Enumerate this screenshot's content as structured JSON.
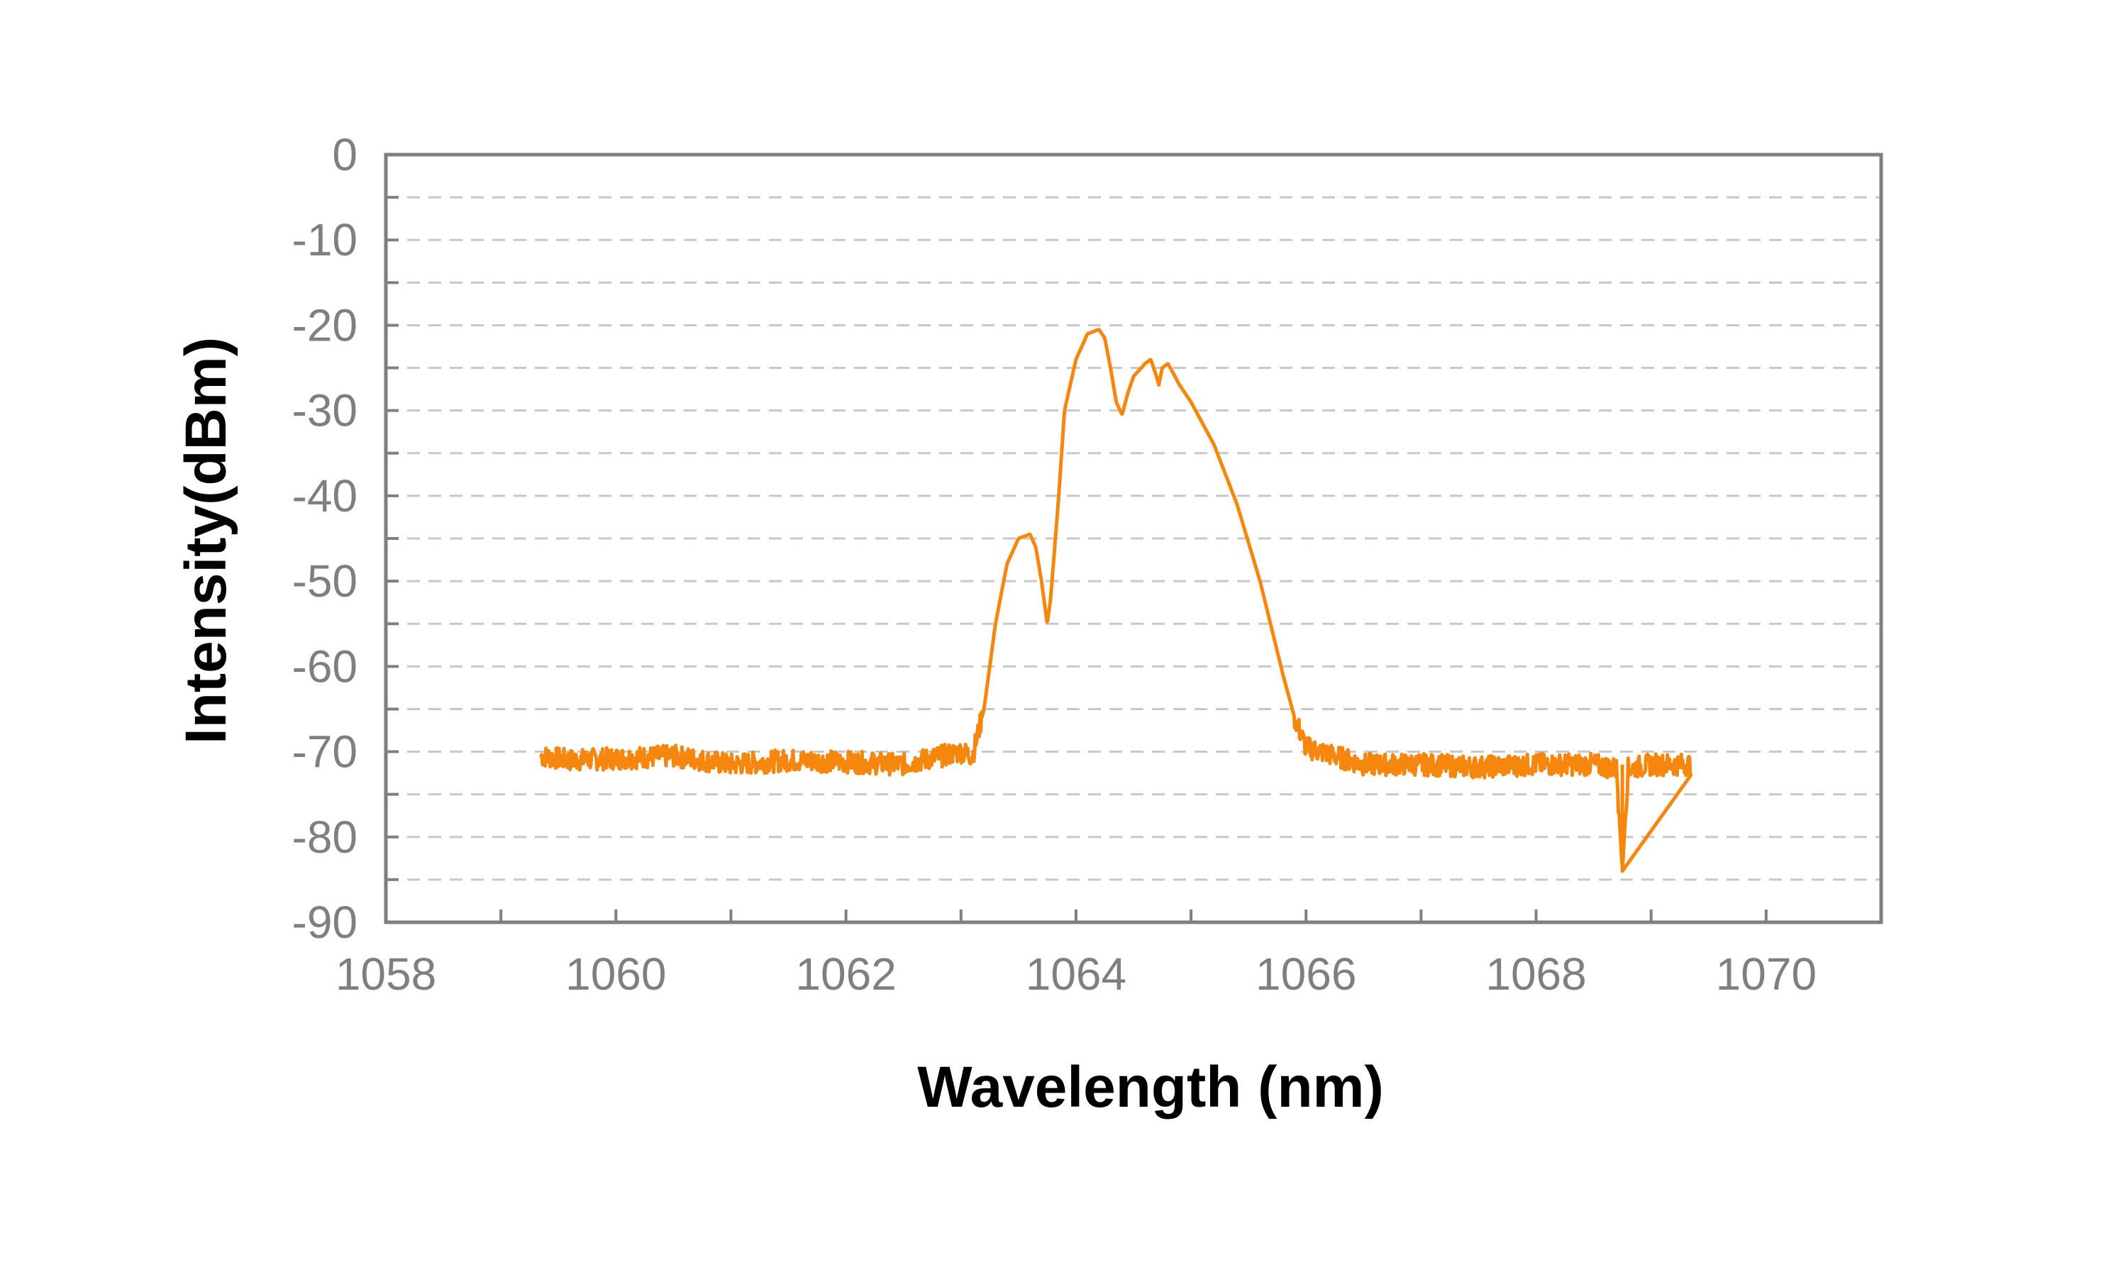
{
  "chart_data": {
    "type": "line",
    "title": "",
    "xlabel": "Wavelength (nm)",
    "ylabel": "Intensity(dBm)",
    "xlim": [
      1058,
      1071
    ],
    "ylim": [
      -90,
      0
    ],
    "x_ticks": [
      1058,
      1060,
      1062,
      1064,
      1066,
      1068,
      1070
    ],
    "x_tick_labels": [
      "1058",
      "1060",
      "1062",
      "1064",
      "1066",
      "1068",
      "1070"
    ],
    "y_ticks": [
      0,
      -10,
      -20,
      -30,
      -40,
      -50,
      -60,
      -70,
      -80,
      -90
    ],
    "y_tick_labels": [
      "0",
      "-10",
      "-20",
      "-30",
      "-40",
      "-50",
      "-60",
      "-70",
      "-80",
      "-90"
    ],
    "grid": "horizontal dashed at every 5 dBm",
    "legend": "none",
    "series": [
      {
        "color": "#f5870f",
        "x": [
          1059.35,
          1059.6,
          1060.0,
          1060.5,
          1061.0,
          1061.5,
          1062.0,
          1062.5,
          1063.0,
          1063.1,
          1063.2,
          1063.3,
          1063.4,
          1063.5,
          1063.6,
          1063.65,
          1063.7,
          1063.75,
          1063.78,
          1063.85,
          1063.9,
          1063.95,
          1064.0,
          1064.1,
          1064.2,
          1064.25,
          1064.3,
          1064.35,
          1064.4,
          1064.45,
          1064.5,
          1064.6,
          1064.65,
          1064.7,
          1064.72,
          1064.75,
          1064.8,
          1064.9,
          1065.0,
          1065.2,
          1065.4,
          1065.6,
          1065.8,
          1065.9,
          1066.0,
          1066.5,
          1067.0,
          1067.5,
          1068.0,
          1068.5,
          1068.7,
          1068.75,
          1068.8,
          1069.0,
          1069.35
        ],
        "y": [
          -70.5,
          -71,
          -70.8,
          -70.5,
          -71.5,
          -71,
          -71.2,
          -71.5,
          -70,
          -70.5,
          -65,
          -55,
          -48,
          -45,
          -44.5,
          -46,
          -50,
          -55,
          -52,
          -40,
          -30,
          -27,
          -24,
          -21,
          -20.5,
          -21.5,
          -25,
          -29,
          -30.5,
          -28,
          -26,
          -24.5,
          -24,
          -26,
          -27,
          -25,
          -24.5,
          -27,
          -29,
          -34,
          -41,
          -50,
          -61,
          -66,
          -69.5,
          -71.5,
          -71.5,
          -71.8,
          -71.5,
          -71.5,
          -72,
          -84,
          -72,
          -71.5,
          -71.5
        ]
      }
    ]
  }
}
